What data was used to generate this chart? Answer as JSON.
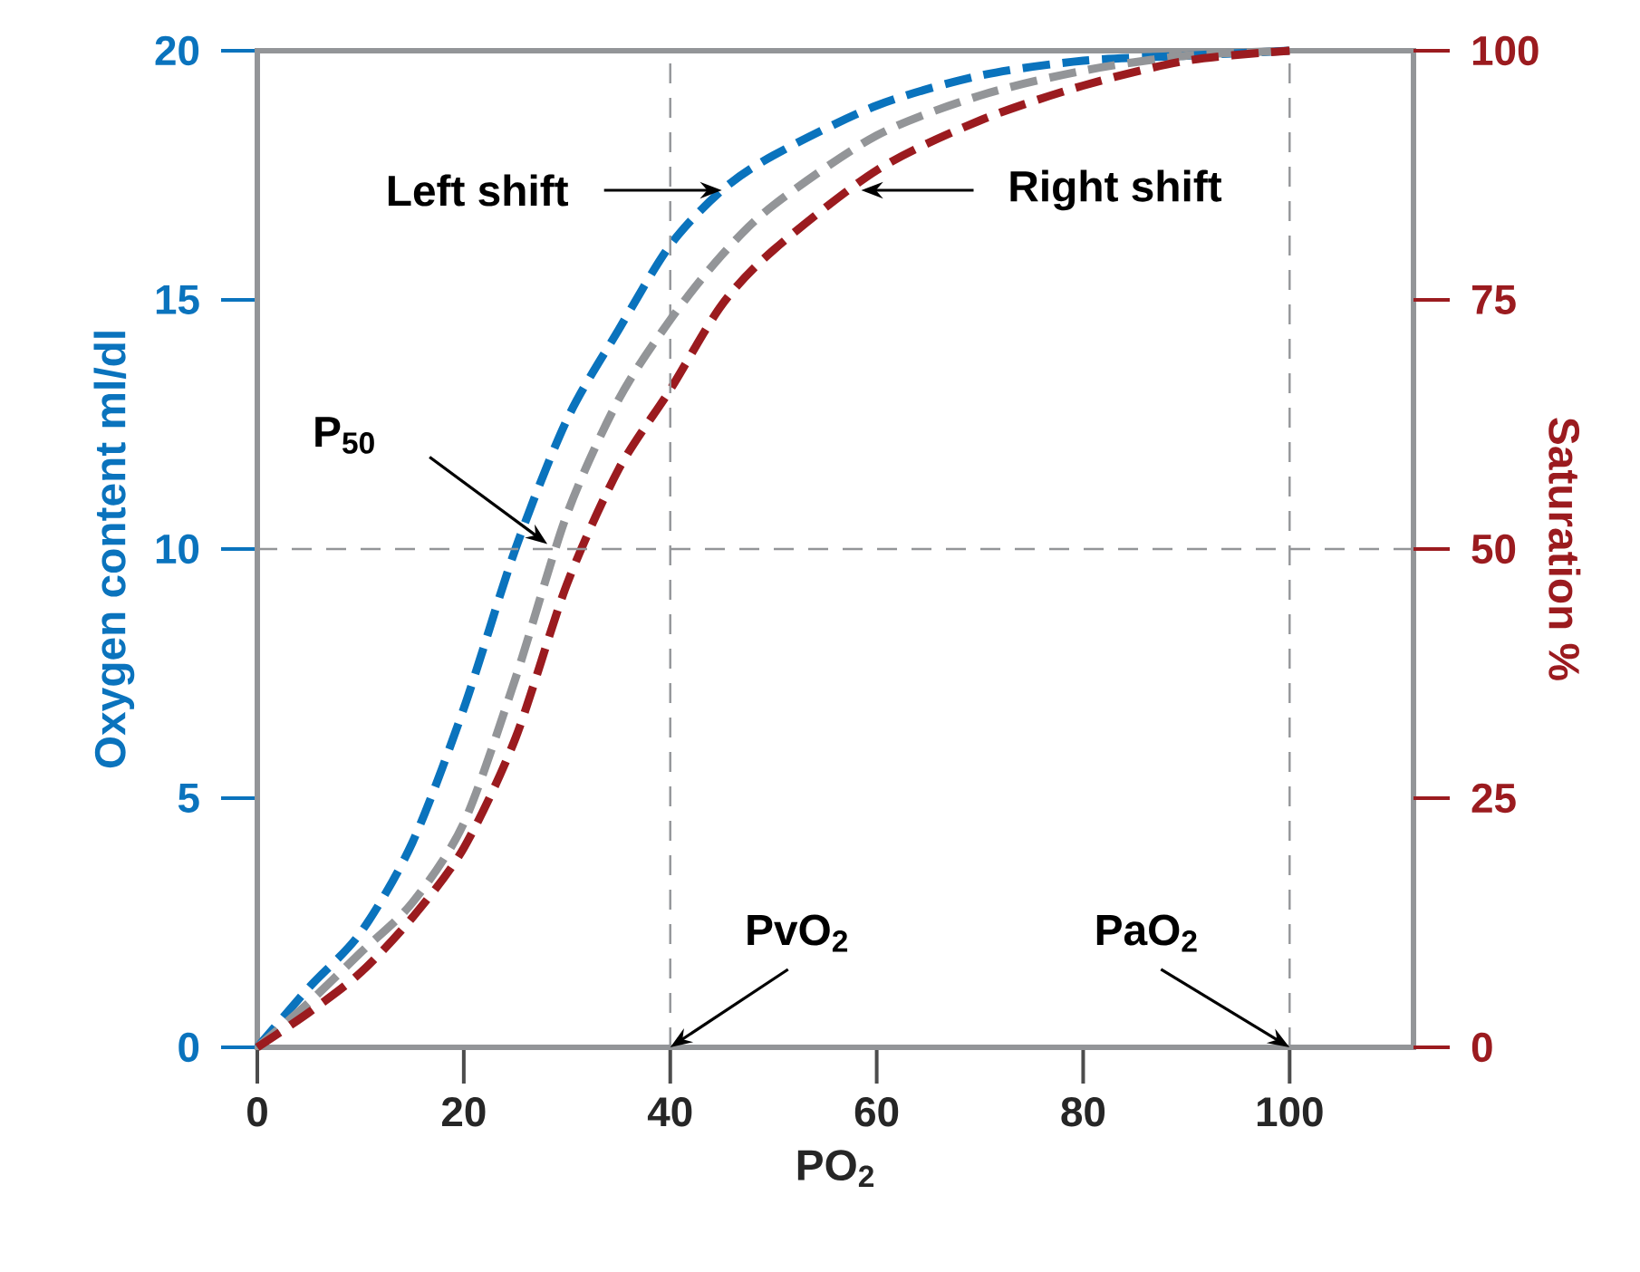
{
  "chart_data": {
    "type": "line",
    "xlabel": "PO$_{2}$",
    "ylabel": "Oxygen content ml/dl",
    "y2label": "Saturation %",
    "xlim": [
      0,
      112
    ],
    "ylim": [
      0,
      20
    ],
    "y2lim": [
      0,
      100
    ],
    "xticks": [
      0,
      20,
      40,
      60,
      80,
      100
    ],
    "yticks": [
      0,
      5,
      10,
      15,
      20
    ],
    "y2ticks": [
      0,
      25,
      50,
      75,
      100
    ],
    "line_style": "dashed",
    "x": [
      0,
      5,
      10,
      15,
      20,
      25,
      30,
      35,
      40,
      45,
      50,
      60,
      70,
      80,
      90,
      100
    ],
    "series": [
      {
        "color": "#0a73bd",
        "values": [
          0,
          1.2,
          2.3,
          4.1,
          6.8,
          10.0,
          12.6,
          14.4,
          16.1,
          17.2,
          17.9,
          18.9,
          19.5,
          19.8,
          19.9,
          20
        ]
      },
      {
        "color": "#939598",
        "values": [
          0,
          0.9,
          1.9,
          2.9,
          4.5,
          7.4,
          10.7,
          13.0,
          14.6,
          15.9,
          16.9,
          18.3,
          19.1,
          19.6,
          19.9,
          20
        ]
      },
      {
        "color": "#9b1b1f",
        "values": [
          0,
          0.7,
          1.5,
          2.6,
          4.0,
          6.2,
          9.3,
          11.6,
          13.2,
          14.9,
          16.0,
          17.6,
          18.6,
          19.3,
          19.8,
          20
        ]
      }
    ],
    "ref_lines": [
      {
        "axis": "y",
        "value": 10,
        "color": "#939598",
        "line_style": "dashed"
      },
      {
        "axis": "x",
        "value": 40,
        "color": "#939598",
        "line_style": "dashed"
      },
      {
        "axis": "x",
        "value": 100,
        "color": "#939598",
        "line_style": "dashed"
      }
    ],
    "annotations": [
      {
        "text": "Left shift",
        "x": 45,
        "y": 17.2
      },
      {
        "text": "Right shift",
        "x": 58.5,
        "y": 17.2
      },
      {
        "text": "P$_{50}$",
        "x": 28.1,
        "y": 10.1
      },
      {
        "text": "PvO$_{2}$",
        "x": 40,
        "y": 0
      },
      {
        "text": "PaO$_{2}$",
        "x": 100,
        "y": 0
      }
    ]
  }
}
